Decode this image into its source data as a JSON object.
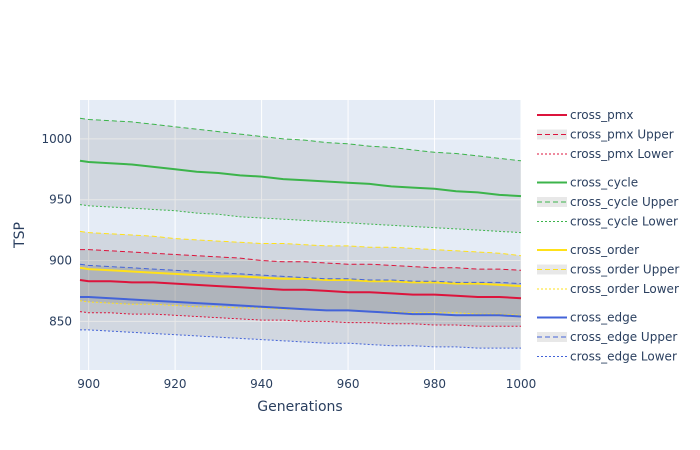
{
  "chart_data": {
    "type": "line",
    "xlabel": "Generations",
    "ylabel": "TSP",
    "xlim": [
      898,
      1000
    ],
    "ylim": [
      810,
      1032
    ],
    "x_ticks": [
      900,
      920,
      940,
      960,
      980,
      1000
    ],
    "y_ticks": [
      850,
      900,
      950,
      1000
    ],
    "x": [
      898,
      900,
      905,
      910,
      915,
      920,
      925,
      930,
      935,
      940,
      945,
      950,
      955,
      960,
      965,
      970,
      975,
      980,
      985,
      990,
      995,
      1000
    ],
    "legend_position": "right",
    "background": "#e5ecf6",
    "band_fill": "rgba(68,68,68,0.12)",
    "series": [
      {
        "name": "cross_pmx",
        "color": "#dc143c",
        "mean": [
          884,
          883,
          883,
          882,
          882,
          881,
          880,
          879,
          878,
          877,
          876,
          876,
          875,
          874,
          874,
          873,
          872,
          872,
          871,
          870,
          870,
          869
        ],
        "upper": [
          909,
          909,
          908,
          907,
          906,
          905,
          904,
          903,
          902,
          900,
          899,
          899,
          898,
          897,
          897,
          896,
          895,
          894,
          894,
          893,
          893,
          892
        ],
        "lower": [
          858,
          857,
          857,
          856,
          856,
          855,
          854,
          853,
          852,
          851,
          851,
          850,
          850,
          849,
          849,
          848,
          848,
          847,
          847,
          846,
          846,
          846
        ]
      },
      {
        "name": "cross_cycle",
        "color": "#3cb44b",
        "mean": [
          982,
          981,
          980,
          979,
          977,
          975,
          973,
          972,
          970,
          969,
          967,
          966,
          965,
          964,
          963,
          961,
          960,
          959,
          957,
          956,
          954,
          953
        ],
        "upper": [
          1017,
          1016,
          1015,
          1014,
          1012,
          1010,
          1008,
          1006,
          1004,
          1002,
          1000,
          999,
          997,
          996,
          994,
          993,
          991,
          989,
          988,
          986,
          984,
          982
        ],
        "lower": [
          946,
          945,
          944,
          943,
          942,
          941,
          939,
          938,
          936,
          935,
          934,
          933,
          932,
          931,
          930,
          929,
          928,
          927,
          926,
          925,
          924,
          923
        ]
      },
      {
        "name": "cross_order",
        "color": "#ffe119",
        "mean": [
          894,
          893,
          892,
          891,
          890,
          889,
          888,
          887,
          887,
          886,
          885,
          885,
          884,
          884,
          883,
          883,
          882,
          882,
          881,
          881,
          880,
          879
        ],
        "upper": [
          924,
          923,
          922,
          921,
          920,
          918,
          917,
          916,
          915,
          914,
          914,
          913,
          912,
          912,
          911,
          911,
          910,
          909,
          908,
          907,
          906,
          904
        ],
        "lower": [
          867,
          866,
          865,
          864,
          864,
          863,
          862,
          862,
          861,
          861,
          860,
          860,
          859,
          859,
          858,
          858,
          857,
          857,
          857,
          856,
          856,
          855
        ]
      },
      {
        "name": "cross_edge",
        "color": "#4363d8",
        "mean": [
          870,
          870,
          869,
          868,
          867,
          866,
          865,
          864,
          863,
          862,
          861,
          860,
          859,
          859,
          858,
          857,
          856,
          856,
          855,
          855,
          855,
          854
        ],
        "upper": [
          897,
          896,
          895,
          894,
          893,
          892,
          891,
          890,
          889,
          888,
          887,
          886,
          885,
          885,
          884,
          884,
          883,
          883,
          882,
          882,
          882,
          881
        ],
        "lower": [
          843,
          843,
          842,
          841,
          840,
          839,
          838,
          837,
          836,
          835,
          834,
          833,
          832,
          832,
          831,
          830,
          830,
          829,
          829,
          828,
          828,
          828
        ]
      }
    ],
    "legend_entries": [
      "cross_pmx",
      "cross_pmx Upper",
      "cross_pmx Lower",
      "cross_cycle",
      "cross_cycle Upper",
      "cross_cycle Lower",
      "cross_order",
      "cross_order Upper",
      "cross_order Lower",
      "cross_edge",
      "cross_edge Upper",
      "cross_edge Lower"
    ]
  }
}
